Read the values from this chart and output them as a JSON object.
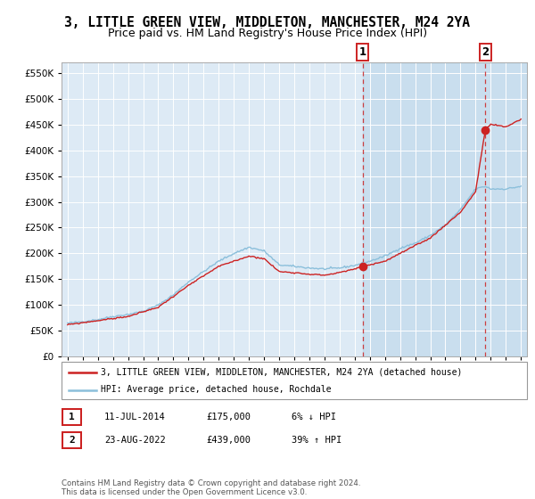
{
  "title": "3, LITTLE GREEN VIEW, MIDDLETON, MANCHESTER, M24 2YA",
  "subtitle": "Price paid vs. HM Land Registry's House Price Index (HPI)",
  "ylabel_vals": [
    0,
    50000,
    100000,
    150000,
    200000,
    250000,
    300000,
    350000,
    400000,
    450000,
    500000,
    550000
  ],
  "x_start_year": 1995,
  "x_end_year": 2025,
  "hpi_color": "#8bbfdb",
  "price_color": "#cc2222",
  "background_color": "#ddeaf5",
  "grid_color": "#ffffff",
  "sale1_date": 2014.53,
  "sale1_price": 175000,
  "sale2_date": 2022.64,
  "sale2_price": 439000,
  "legend_label1": "3, LITTLE GREEN VIEW, MIDDLETON, MANCHESTER, M24 2YA (detached house)",
  "legend_label2": "HPI: Average price, detached house, Rochdale",
  "table_row1": [
    "1",
    "11-JUL-2014",
    "£175,000",
    "6% ↓ HPI"
  ],
  "table_row2": [
    "2",
    "23-AUG-2022",
    "£439,000",
    "39% ↑ HPI"
  ],
  "footnote": "Contains HM Land Registry data © Crown copyright and database right 2024.\nThis data is licensed under the Open Government Licence v3.0.",
  "title_fontsize": 10.5,
  "subtitle_fontsize": 9
}
